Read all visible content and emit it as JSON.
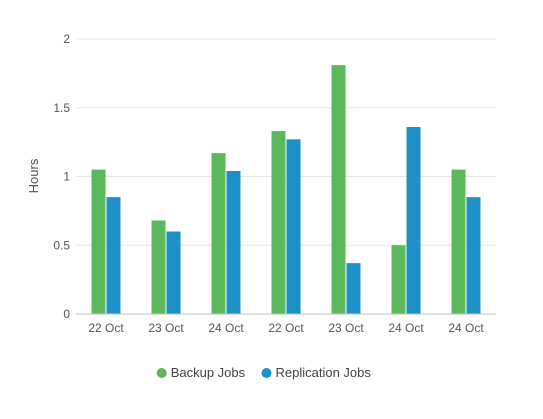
{
  "chart_data": {
    "type": "bar",
    "title": "",
    "xlabel": "",
    "ylabel": "Hours",
    "ylim": [
      0,
      2
    ],
    "yticks": [
      0,
      0.5,
      1,
      1.5,
      2
    ],
    "ytick_labels": [
      "0",
      "0.5",
      "1",
      "1.5",
      "2"
    ],
    "grid": true,
    "legend_position": "bottom-center",
    "categories": [
      "22 Oct",
      "23 Oct",
      "24 Oct",
      "22 Oct",
      "23 Oct",
      "24 Oct",
      "24 Oct"
    ],
    "series": [
      {
        "name": "Backup Jobs",
        "color": "#5cb85c",
        "values": [
          1.05,
          0.68,
          1.17,
          1.33,
          1.81,
          0.5,
          1.05
        ]
      },
      {
        "name": "Replication Jobs",
        "color": "#1e90c8",
        "values": [
          0.85,
          0.6,
          1.04,
          1.27,
          0.37,
          1.36,
          0.85
        ]
      }
    ]
  }
}
